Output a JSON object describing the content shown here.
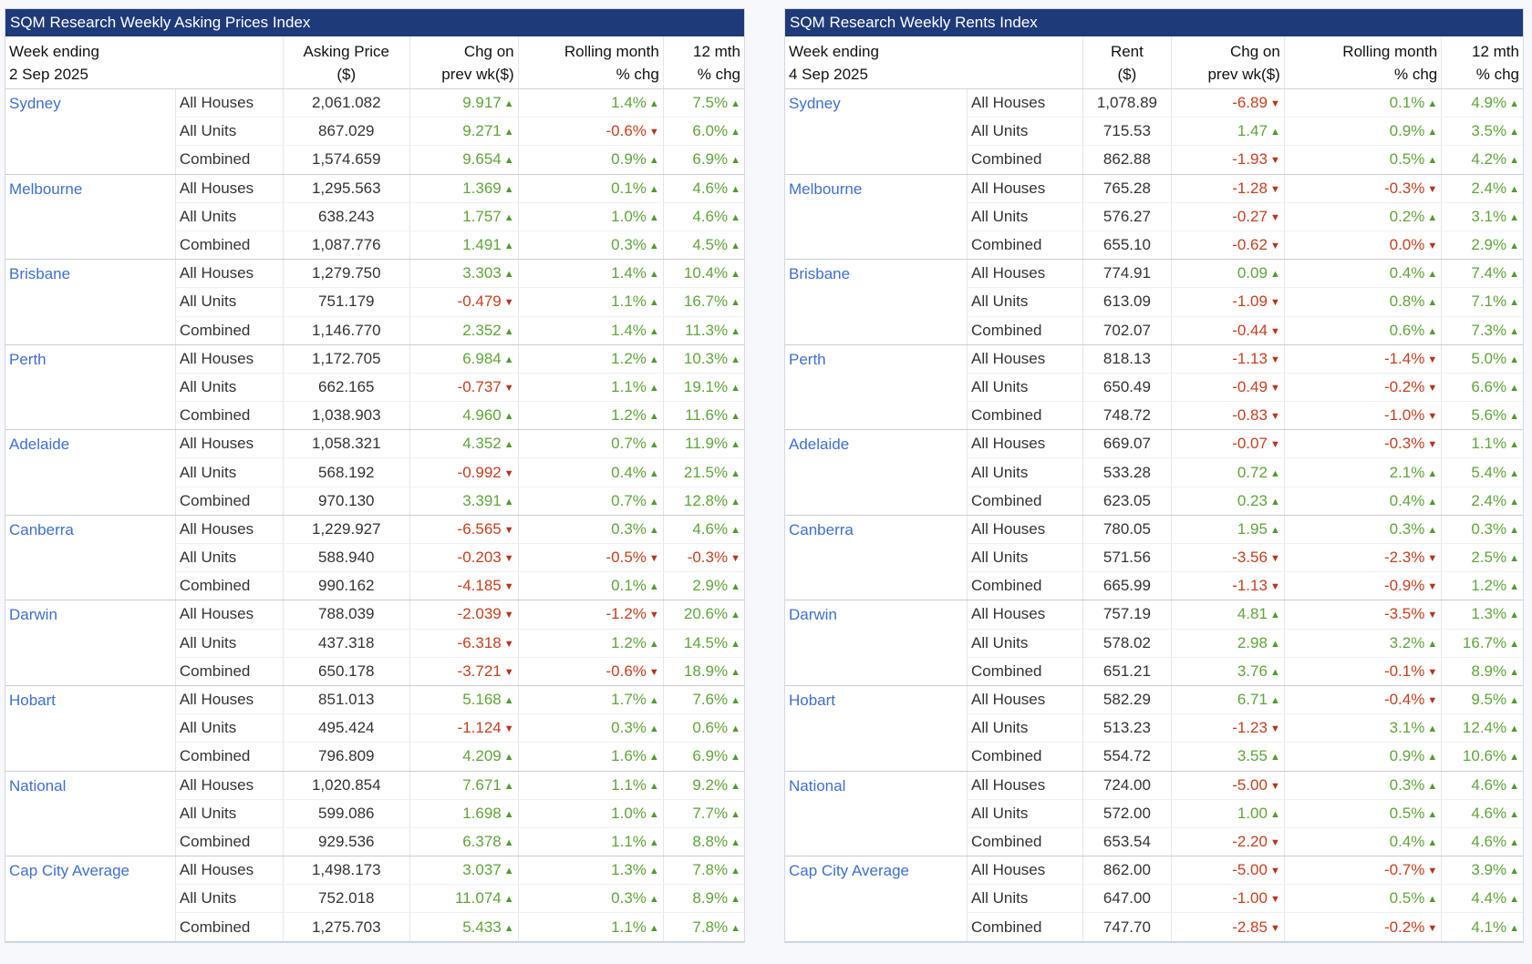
{
  "colors": {
    "header_bg": "#1e3a78",
    "city_link": "#3e6fd0",
    "positive": "#5fa53a",
    "negative": "#c5401e"
  },
  "prices": {
    "title": "SQM Research Weekly Asking Prices Index",
    "headers": {
      "week_line1": "Week ending",
      "week_line2": "2 Sep 2025",
      "value_line1": "Asking Price",
      "value_line2": "($)",
      "chg_line1": "Chg on",
      "chg_line2": "prev wk($)",
      "roll_line1": "Rolling month",
      "roll_line2": "% chg",
      "yr_line1": "12 mth",
      "yr_line2": "% chg"
    },
    "groups": [
      {
        "city": "Sydney",
        "rows": [
          {
            "type": "All Houses",
            "value": "2,061.082",
            "chg": "9.917",
            "roll": "1.4%",
            "yr": "7.5%"
          },
          {
            "type": "All Units",
            "value": "867.029",
            "chg": "9.271",
            "roll": "-0.6%",
            "yr": "6.0%"
          },
          {
            "type": "Combined",
            "value": "1,574.659",
            "chg": "9.654",
            "roll": "0.9%",
            "yr": "6.9%"
          }
        ]
      },
      {
        "city": "Melbourne",
        "rows": [
          {
            "type": "All Houses",
            "value": "1,295.563",
            "chg": "1.369",
            "roll": "0.1%",
            "yr": "4.6%"
          },
          {
            "type": "All Units",
            "value": "638.243",
            "chg": "1.757",
            "roll": "1.0%",
            "yr": "4.6%"
          },
          {
            "type": "Combined",
            "value": "1,087.776",
            "chg": "1.491",
            "roll": "0.3%",
            "yr": "4.5%"
          }
        ]
      },
      {
        "city": "Brisbane",
        "rows": [
          {
            "type": "All Houses",
            "value": "1,279.750",
            "chg": "3.303",
            "roll": "1.4%",
            "yr": "10.4%"
          },
          {
            "type": "All Units",
            "value": "751.179",
            "chg": "-0.479",
            "roll": "1.1%",
            "yr": "16.7%"
          },
          {
            "type": "Combined",
            "value": "1,146.770",
            "chg": "2.352",
            "roll": "1.4%",
            "yr": "11.3%"
          }
        ]
      },
      {
        "city": "Perth",
        "rows": [
          {
            "type": "All Houses",
            "value": "1,172.705",
            "chg": "6.984",
            "roll": "1.2%",
            "yr": "10.3%"
          },
          {
            "type": "All Units",
            "value": "662.165",
            "chg": "-0.737",
            "roll": "1.1%",
            "yr": "19.1%"
          },
          {
            "type": "Combined",
            "value": "1,038.903",
            "chg": "4.960",
            "roll": "1.2%",
            "yr": "11.6%"
          }
        ]
      },
      {
        "city": "Adelaide",
        "rows": [
          {
            "type": "All Houses",
            "value": "1,058.321",
            "chg": "4.352",
            "roll": "0.7%",
            "yr": "11.9%"
          },
          {
            "type": "All Units",
            "value": "568.192",
            "chg": "-0.992",
            "roll": "0.4%",
            "yr": "21.5%"
          },
          {
            "type": "Combined",
            "value": "970.130",
            "chg": "3.391",
            "roll": "0.7%",
            "yr": "12.8%"
          }
        ]
      },
      {
        "city": "Canberra",
        "rows": [
          {
            "type": "All Houses",
            "value": "1,229.927",
            "chg": "-6.565",
            "roll": "0.3%",
            "yr": "4.6%"
          },
          {
            "type": "All Units",
            "value": "588.940",
            "chg": "-0.203",
            "roll": "-0.5%",
            "yr": "-0.3%"
          },
          {
            "type": "Combined",
            "value": "990.162",
            "chg": "-4.185",
            "roll": "0.1%",
            "yr": "2.9%"
          }
        ]
      },
      {
        "city": "Darwin",
        "rows": [
          {
            "type": "All Houses",
            "value": "788.039",
            "chg": "-2.039",
            "roll": "-1.2%",
            "yr": "20.6%"
          },
          {
            "type": "All Units",
            "value": "437.318",
            "chg": "-6.318",
            "roll": "1.2%",
            "yr": "14.5%"
          },
          {
            "type": "Combined",
            "value": "650.178",
            "chg": "-3.721",
            "roll": "-0.6%",
            "yr": "18.9%"
          }
        ]
      },
      {
        "city": "Hobart",
        "rows": [
          {
            "type": "All Houses",
            "value": "851.013",
            "chg": "5.168",
            "roll": "1.7%",
            "yr": "7.6%"
          },
          {
            "type": "All Units",
            "value": "495.424",
            "chg": "-1.124",
            "roll": "0.3%",
            "yr": "0.6%"
          },
          {
            "type": "Combined",
            "value": "796.809",
            "chg": "4.209",
            "roll": "1.6%",
            "yr": "6.9%"
          }
        ]
      },
      {
        "city": "National",
        "rows": [
          {
            "type": "All Houses",
            "value": "1,020.854",
            "chg": "7.671",
            "roll": "1.1%",
            "yr": "9.2%"
          },
          {
            "type": "All Units",
            "value": "599.086",
            "chg": "1.698",
            "roll": "1.0%",
            "yr": "7.7%"
          },
          {
            "type": "Combined",
            "value": "929.536",
            "chg": "6.378",
            "roll": "1.1%",
            "yr": "8.8%"
          }
        ]
      },
      {
        "city": "Cap City Average",
        "rows": [
          {
            "type": "All Houses",
            "value": "1,498.173",
            "chg": "3.037",
            "roll": "1.3%",
            "yr": "7.8%"
          },
          {
            "type": "All Units",
            "value": "752.018",
            "chg": "11.074",
            "roll": "0.3%",
            "yr": "8.9%"
          },
          {
            "type": "Combined",
            "value": "1,275.703",
            "chg": "5.433",
            "roll": "1.1%",
            "yr": "7.8%"
          }
        ]
      }
    ]
  },
  "rents": {
    "title": "SQM Research Weekly Rents Index",
    "headers": {
      "week_line1": "Week ending",
      "week_line2": "4 Sep 2025",
      "value_line1": "Rent",
      "value_line2": "($)",
      "chg_line1": "Chg on",
      "chg_line2": "prev wk($)",
      "roll_line1": "Rolling month",
      "roll_line2": "% chg",
      "yr_line1": "12 mth",
      "yr_line2": "% chg"
    },
    "groups": [
      {
        "city": "Sydney",
        "rows": [
          {
            "type": "All Houses",
            "value": "1,078.89",
            "chg": "-6.89",
            "roll": "0.1%",
            "yr": "4.9%"
          },
          {
            "type": "All Units",
            "value": "715.53",
            "chg": "1.47",
            "roll": "0.9%",
            "yr": "3.5%"
          },
          {
            "type": "Combined",
            "value": "862.88",
            "chg": "-1.93",
            "roll": "0.5%",
            "yr": "4.2%"
          }
        ]
      },
      {
        "city": "Melbourne",
        "rows": [
          {
            "type": "All Houses",
            "value": "765.28",
            "chg": "-1.28",
            "roll": "-0.3%",
            "yr": "2.4%"
          },
          {
            "type": "All Units",
            "value": "576.27",
            "chg": "-0.27",
            "roll": "0.2%",
            "yr": "3.1%"
          },
          {
            "type": "Combined",
            "value": "655.10",
            "chg": "-0.62",
            "roll": "0.0%",
            "roll_dir": "down",
            "yr": "2.9%"
          }
        ]
      },
      {
        "city": "Brisbane",
        "rows": [
          {
            "type": "All Houses",
            "value": "774.91",
            "chg": "0.09",
            "roll": "0.4%",
            "yr": "7.4%"
          },
          {
            "type": "All Units",
            "value": "613.09",
            "chg": "-1.09",
            "roll": "0.8%",
            "yr": "7.1%"
          },
          {
            "type": "Combined",
            "value": "702.07",
            "chg": "-0.44",
            "roll": "0.6%",
            "yr": "7.3%"
          }
        ]
      },
      {
        "city": "Perth",
        "rows": [
          {
            "type": "All Houses",
            "value": "818.13",
            "chg": "-1.13",
            "roll": "-1.4%",
            "yr": "5.0%"
          },
          {
            "type": "All Units",
            "value": "650.49",
            "chg": "-0.49",
            "roll": "-0.2%",
            "yr": "6.6%"
          },
          {
            "type": "Combined",
            "value": "748.72",
            "chg": "-0.83",
            "roll": "-1.0%",
            "yr": "5.6%"
          }
        ]
      },
      {
        "city": "Adelaide",
        "rows": [
          {
            "type": "All Houses",
            "value": "669.07",
            "chg": "-0.07",
            "roll": "-0.3%",
            "yr": "1.1%"
          },
          {
            "type": "All Units",
            "value": "533.28",
            "chg": "0.72",
            "roll": "2.1%",
            "yr": "5.4%"
          },
          {
            "type": "Combined",
            "value": "623.05",
            "chg": "0.23",
            "roll": "0.4%",
            "yr": "2.4%"
          }
        ]
      },
      {
        "city": "Canberra",
        "rows": [
          {
            "type": "All Houses",
            "value": "780.05",
            "chg": "1.95",
            "roll": "0.3%",
            "yr": "0.3%"
          },
          {
            "type": "All Units",
            "value": "571.56",
            "chg": "-3.56",
            "roll": "-2.3%",
            "yr": "2.5%"
          },
          {
            "type": "Combined",
            "value": "665.99",
            "chg": "-1.13",
            "roll": "-0.9%",
            "yr": "1.2%"
          }
        ]
      },
      {
        "city": "Darwin",
        "rows": [
          {
            "type": "All Houses",
            "value": "757.19",
            "chg": "4.81",
            "roll": "-3.5%",
            "yr": "1.3%"
          },
          {
            "type": "All Units",
            "value": "578.02",
            "chg": "2.98",
            "roll": "3.2%",
            "yr": "16.7%"
          },
          {
            "type": "Combined",
            "value": "651.21",
            "chg": "3.76",
            "roll": "-0.1%",
            "yr": "8.9%"
          }
        ]
      },
      {
        "city": "Hobart",
        "rows": [
          {
            "type": "All Houses",
            "value": "582.29",
            "chg": "6.71",
            "roll": "-0.4%",
            "yr": "9.5%"
          },
          {
            "type": "All Units",
            "value": "513.23",
            "chg": "-1.23",
            "roll": "3.1%",
            "yr": "12.4%"
          },
          {
            "type": "Combined",
            "value": "554.72",
            "chg": "3.55",
            "roll": "0.9%",
            "yr": "10.6%"
          }
        ]
      },
      {
        "city": "National",
        "rows": [
          {
            "type": "All Houses",
            "value": "724.00",
            "chg": "-5.00",
            "roll": "0.3%",
            "yr": "4.6%"
          },
          {
            "type": "All Units",
            "value": "572.00",
            "chg": "1.00",
            "roll": "0.5%",
            "yr": "4.6%"
          },
          {
            "type": "Combined",
            "value": "653.54",
            "chg": "-2.20",
            "roll": "0.4%",
            "yr": "4.6%"
          }
        ]
      },
      {
        "city": "Cap City Average",
        "rows": [
          {
            "type": "All Houses",
            "value": "862.00",
            "chg": "-5.00",
            "roll": "-0.7%",
            "yr": "3.9%"
          },
          {
            "type": "All Units",
            "value": "647.00",
            "chg": "-1.00",
            "roll": "0.5%",
            "yr": "4.4%"
          },
          {
            "type": "Combined",
            "value": "747.70",
            "chg": "-2.85",
            "roll": "-0.2%",
            "yr": "4.1%"
          }
        ]
      }
    ]
  }
}
